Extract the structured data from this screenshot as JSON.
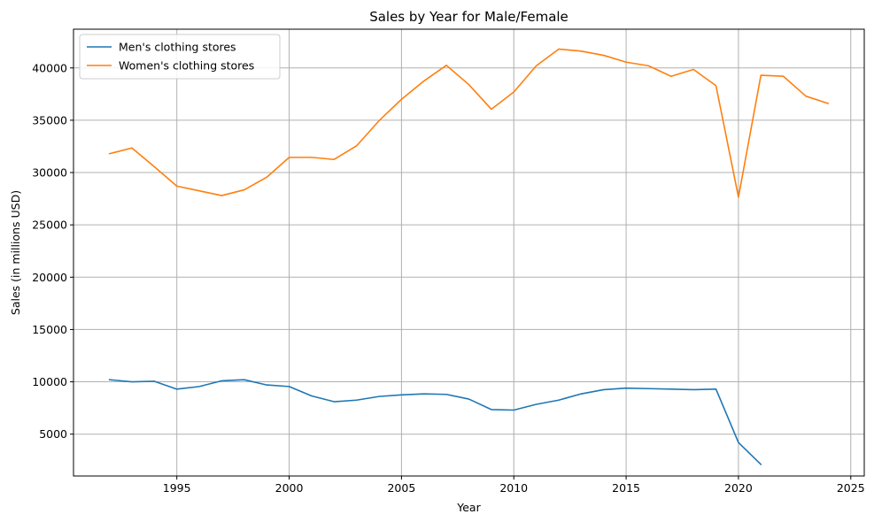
{
  "chart_data": {
    "type": "line",
    "title": "Sales by Year for Male/Female",
    "xlabel": "Year",
    "ylabel": "Sales (in millions USD)",
    "xlim": [
      1990.4,
      2025.6
    ],
    "ylim": [
      1000,
      43700
    ],
    "xticks": [
      1995,
      2000,
      2005,
      2010,
      2015,
      2020,
      2025
    ],
    "yticks": [
      5000,
      10000,
      15000,
      20000,
      25000,
      30000,
      35000,
      40000
    ],
    "grid": true,
    "legend_position": "top-left",
    "series": [
      {
        "name": "Men's clothing stores",
        "color": "#1f77b4",
        "x": [
          1992,
          1993,
          1994,
          1995,
          1996,
          1997,
          1998,
          1999,
          2000,
          2001,
          2002,
          2003,
          2004,
          2005,
          2006,
          2007,
          2008,
          2009,
          2010,
          2011,
          2012,
          2013,
          2014,
          2015,
          2016,
          2017,
          2018,
          2019,
          2020,
          2021
        ],
        "values": [
          10200,
          10000,
          10050,
          9300,
          9550,
          10100,
          10200,
          9700,
          9550,
          8650,
          8100,
          8250,
          8600,
          8750,
          8850,
          8800,
          8350,
          7350,
          7300,
          7850,
          8250,
          8850,
          9250,
          9400,
          9350,
          9300,
          9250,
          9300,
          4200,
          2100
        ]
      },
      {
        "name": "Women's clothing stores",
        "color": "#ff7f0e",
        "x": [
          1992,
          1993,
          1994,
          1995,
          1996,
          1997,
          1998,
          1999,
          2000,
          2001,
          2002,
          2003,
          2004,
          2005,
          2006,
          2007,
          2008,
          2009,
          2010,
          2011,
          2012,
          2013,
          2014,
          2015,
          2016,
          2017,
          2018,
          2019,
          2020,
          2021,
          2022,
          2023,
          2024
        ],
        "values": [
          31800,
          32350,
          30550,
          28700,
          28250,
          27800,
          28350,
          29550,
          31450,
          31450,
          31250,
          32550,
          34950,
          37000,
          38750,
          40250,
          38400,
          36050,
          37700,
          40200,
          41800,
          41600,
          41200,
          40550,
          40200,
          39200,
          39850,
          38300,
          27650,
          39300,
          39200,
          37300,
          36600
        ]
      }
    ]
  }
}
